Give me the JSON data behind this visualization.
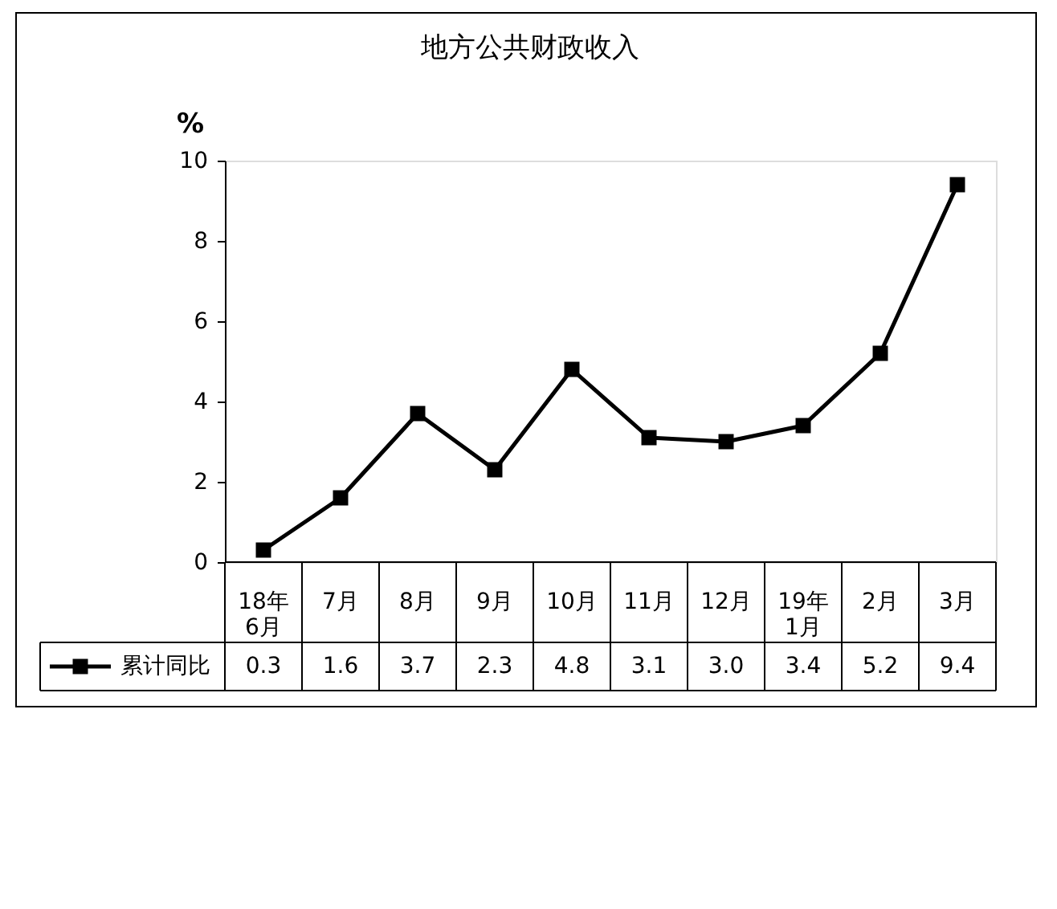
{
  "chart_data": {
    "type": "line",
    "title": "地方公共财政收入",
    "ylabel": "%",
    "categories": [
      "18年\n6月",
      "7月",
      "8月",
      "9月",
      "10月",
      "11月",
      "12月",
      "19年\n1月",
      "2月",
      "3月"
    ],
    "series": [
      {
        "name": "累计同比",
        "color": "#000000",
        "values": [
          0.3,
          1.6,
          3.7,
          2.3,
          4.8,
          3.1,
          3.0,
          3.4,
          5.2,
          9.4
        ]
      }
    ],
    "ylim": [
      0,
      10
    ],
    "yticks": [
      0,
      2,
      4,
      6,
      8,
      10
    ],
    "grid": false,
    "legend": "bottom",
    "marker": "square",
    "line_style": "solid",
    "value_labels": [
      "0.3",
      "1.6",
      "3.7",
      "2.3",
      "4.8",
      "3.1",
      "3.0",
      "3.4",
      "5.2",
      "9.4"
    ]
  }
}
